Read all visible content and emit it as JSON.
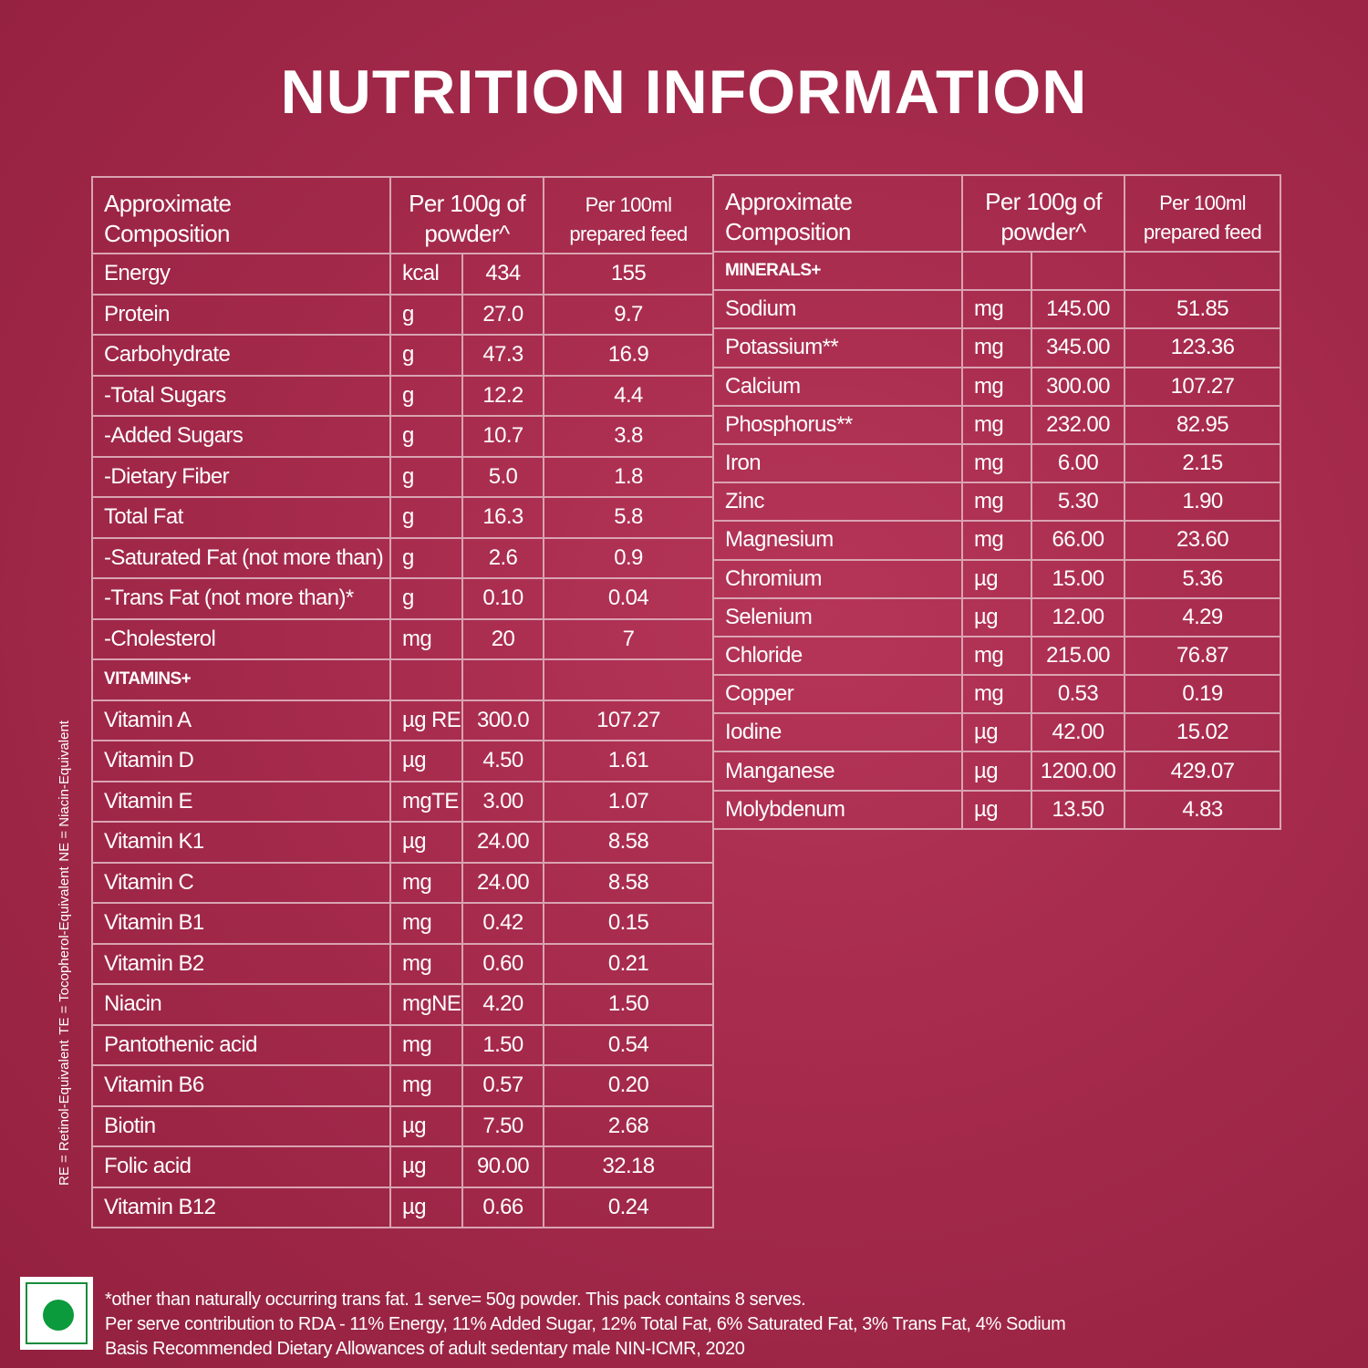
{
  "title": "NUTRITION INFORMATION",
  "left_table": {
    "header": [
      "Approximate\nComposition",
      "Per 100g of\npowder^",
      "Per 100ml\nprepared feed"
    ],
    "rows": [
      [
        "Energy",
        "kcal",
        "434",
        "155"
      ],
      [
        "Protein",
        "g",
        "27.0",
        "9.7"
      ],
      [
        "Carbohydrate",
        "g",
        "47.3",
        "16.9"
      ],
      [
        "-Total Sugars",
        "g",
        "12.2",
        "4.4"
      ],
      [
        "-Added Sugars",
        "g",
        "10.7",
        "3.8"
      ],
      [
        "-Dietary Fiber",
        "g",
        "5.0",
        "1.8"
      ],
      [
        "Total Fat",
        "g",
        "16.3",
        "5.8"
      ],
      [
        "-Saturated Fat (not more than)",
        "g",
        "2.6",
        "0.9"
      ],
      [
        "-Trans Fat (not more than)*",
        "g",
        "0.10",
        "0.04"
      ],
      [
        "-Cholesterol",
        "mg",
        "20",
        "7"
      ],
      [
        "VITAMINS+"
      ],
      [
        "Vitamin A",
        "µg RE",
        "300.0",
        "107.27"
      ],
      [
        "Vitamin D",
        "µg",
        "4.50",
        "1.61"
      ],
      [
        "Vitamin E",
        "mgTE",
        "3.00",
        "1.07"
      ],
      [
        "Vitamin K1",
        "µg",
        "24.00",
        "8.58"
      ],
      [
        "Vitamin C",
        "mg",
        "24.00",
        "8.58"
      ],
      [
        "Vitamin B1",
        "mg",
        "0.42",
        "0.15"
      ],
      [
        "Vitamin B2",
        "mg",
        "0.60",
        "0.21"
      ],
      [
        "Niacin",
        "mgNE",
        "4.20",
        "1.50"
      ],
      [
        "Pantothenic acid",
        "mg",
        "1.50",
        "0.54"
      ],
      [
        "Vitamin B6",
        "mg",
        "0.57",
        "0.20"
      ],
      [
        "Biotin",
        "µg",
        "7.50",
        "2.68"
      ],
      [
        "Folic acid",
        "µg",
        "90.00",
        "32.18"
      ],
      [
        "Vitamin B12",
        "µg",
        "0.66",
        "0.24"
      ]
    ]
  },
  "right_table": {
    "header": [
      "Approximate\nComposition",
      "Per 100g of\npowder^",
      "Per 100ml\nprepared feed"
    ],
    "rows": [
      [
        "MINERALS+"
      ],
      [
        "Sodium",
        "mg",
        "145.00",
        "51.85"
      ],
      [
        "Potassium**",
        "mg",
        "345.00",
        "123.36"
      ],
      [
        "Calcium",
        "mg",
        "300.00",
        "107.27"
      ],
      [
        "Phosphorus**",
        "mg",
        "232.00",
        "82.95"
      ],
      [
        "Iron",
        "mg",
        "6.00",
        "2.15"
      ],
      [
        "Zinc",
        "mg",
        "5.30",
        "1.90"
      ],
      [
        "Magnesium",
        "mg",
        "66.00",
        "23.60"
      ],
      [
        "Chromium",
        "µg",
        "15.00",
        "5.36"
      ],
      [
        "Selenium",
        "µg",
        "12.00",
        "4.29"
      ],
      [
        "Chloride",
        "mg",
        "215.00",
        "76.87"
      ],
      [
        "Copper",
        "mg",
        "0.53",
        "0.19"
      ],
      [
        "Iodine",
        "µg",
        "42.00",
        "15.02"
      ],
      [
        "Manganese",
        "µg",
        "1200.00",
        "429.07"
      ],
      [
        "Molybdenum",
        "µg",
        "13.50",
        "4.83"
      ]
    ]
  },
  "side_notes": [
    "RE = Retinol-Equivalent",
    "TE = Tocopherol-Equivalent",
    "NE = Niacin-Equivalent"
  ],
  "footer": [
    "*other than naturally occurring trans fat. 1 serve= 50g powder. This pack contains 8 serves.",
    "Per serve contribution to RDA - 11% Energy, 11% Added Sugar, 12% Total Fat, 6% Saturated Fat, 3% Trans Fat, 4% Sodium",
    "Basis Recommended Dietary Allowances of adult sedentary male NIN-ICMR, 2020"
  ]
}
